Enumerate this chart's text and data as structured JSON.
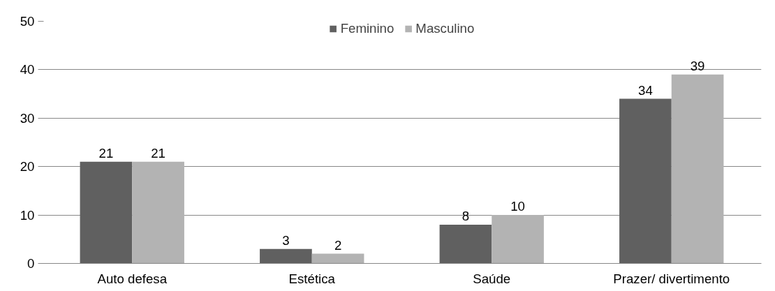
{
  "chart_data": {
    "type": "bar",
    "categories": [
      "Auto defesa",
      "Estética",
      "Saúde",
      "Prazer/ divertimento"
    ],
    "series": [
      {
        "name": "Feminino",
        "color": "#606060",
        "values": [
          21,
          3,
          8,
          34
        ]
      },
      {
        "name": "Masculino",
        "color": "#b3b3b3",
        "values": [
          21,
          2,
          10,
          39
        ]
      }
    ],
    "ylim": [
      0,
      50
    ],
    "yticks": [
      0,
      10,
      20,
      30,
      40,
      50
    ],
    "grid": "y",
    "legend": "top",
    "data_labels": true
  }
}
